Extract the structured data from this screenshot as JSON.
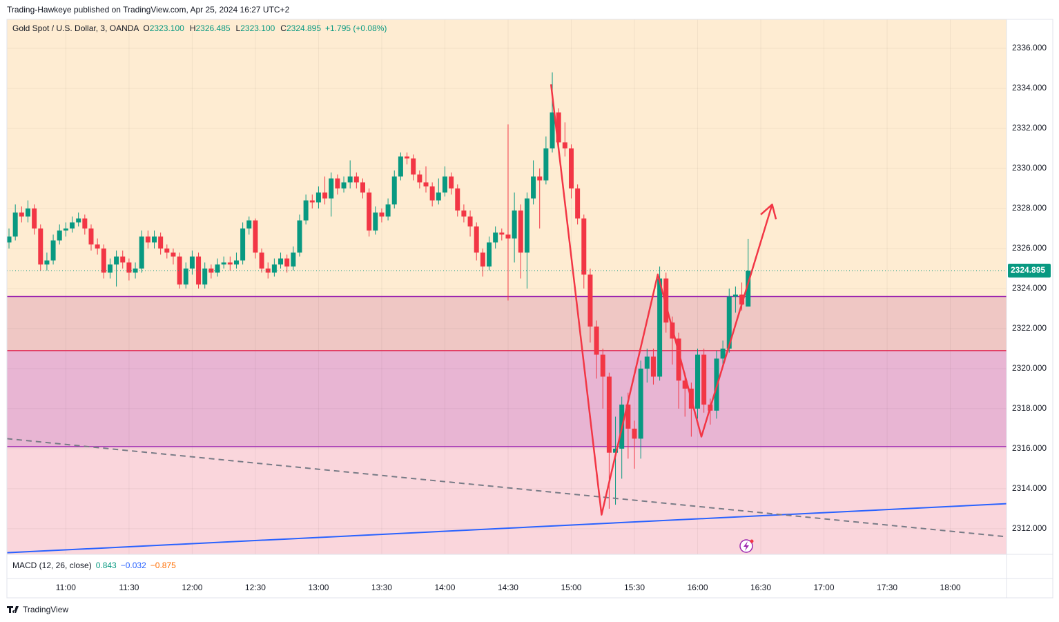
{
  "chart_data": {
    "type": "candlestick",
    "source": "Trading-Hawkeye published on TradingView.com, Apr 25, 2024 16:27 UTC+2",
    "title": "Gold Spot / U.S. Dollar, 3, OANDA",
    "legend": [
      {
        "label": "O",
        "value": "2323.100"
      },
      {
        "label": "H",
        "value": "2326.485"
      },
      {
        "label": "L",
        "value": "2323.100"
      },
      {
        "label": "C",
        "value": "2324.895"
      }
    ],
    "change": "+1.795 (+0.08%)",
    "open": [
      2326.3,
      2326.6,
      2327.8,
      2327.6,
      2328.0,
      2327.0,
      2325.2,
      2325.4,
      2326.4,
      2326.9,
      2327.0,
      2327.3,
      2327.5,
      2327.0,
      2326.2,
      2326.0,
      2324.8,
      2325.2,
      2325.6,
      2325.3,
      2324.8,
      2325.0,
      2326.6,
      2326.3,
      2326.6,
      2326.0,
      2325.8,
      2325.6,
      2324.2,
      2325.0,
      2325.6,
      2324.2,
      2325.0,
      2324.8,
      2325.2,
      2325.3,
      2325.2,
      2325.4,
      2327.0,
      2327.4,
      2325.8,
      2325.0,
      2324.8,
      2325.2,
      2325.5,
      2325.1,
      2325.8,
      2327.4,
      2328.4,
      2328.3,
      2328.8,
      2328.5,
      2329.5,
      2329.0,
      2329.3,
      2329.6,
      2329.3,
      2328.8,
      2326.9,
      2327.8,
      2327.6,
      2328.2,
      2329.6,
      2330.6,
      2330.5,
      2329.7,
      2329.3,
      2329.1,
      2328.4,
      2328.8,
      2329.6,
      2329.0,
      2327.9,
      2327.6,
      2327.1,
      2325.8,
      2325.1,
      2326.3,
      2326.8,
      2326.7,
      2326.5,
      2327.9,
      2325.8,
      2328.5,
      2329.6,
      2329.4,
      2331.0,
      2332.8,
      2331.3,
      2331.0,
      2329.0,
      2327.5,
      2324.7,
      2322.1,
      2320.7,
      2319.6,
      2315.8,
      2316.0,
      2318.2,
      2317.0,
      2316.5,
      2320.0,
      2320.6,
      2319.6,
      2324.5,
      2322.3,
      2321.5,
      2319.4,
      2319.0,
      2318.0,
      2320.7,
      2318.2,
      2317.9,
      2320.5,
      2321.0,
      2323.6,
      2323.7,
      2323.1
    ],
    "high": [
      2327.0,
      2328.2,
      2328.1,
      2328.4,
      2328.2,
      2327.2,
      2325.8,
      2326.7,
      2327.2,
      2327.3,
      2327.6,
      2327.8,
      2327.7,
      2327.2,
      2326.5,
      2326.2,
      2325.5,
      2325.9,
      2325.9,
      2325.5,
      2325.3,
      2326.9,
      2326.9,
      2326.9,
      2326.8,
      2326.2,
      2326.0,
      2325.8,
      2325.3,
      2325.9,
      2325.8,
      2325.3,
      2325.2,
      2325.5,
      2325.6,
      2325.6,
      2325.8,
      2327.3,
      2327.6,
      2327.5,
      2326.0,
      2325.3,
      2325.5,
      2325.8,
      2325.7,
      2326.1,
      2327.7,
      2328.7,
      2328.7,
      2329.1,
      2329.6,
      2329.8,
      2329.7,
      2329.6,
      2330.4,
      2329.8,
      2329.5,
      2329.0,
      2328.1,
      2328.0,
      2328.5,
      2329.9,
      2330.8,
      2330.8,
      2330.7,
      2329.9,
      2330.1,
      2329.3,
      2329.5,
      2330.1,
      2329.8,
      2329.2,
      2328.2,
      2327.9,
      2327.3,
      2326.0,
      2326.6,
      2327.1,
      2327.0,
      2332.2,
      2328.8,
      2328.2,
      2328.8,
      2330.4,
      2330.0,
      2331.6,
      2334.8,
      2333.0,
      2332.3,
      2331.2,
      2329.2,
      2327.7,
      2325.0,
      2322.4,
      2321.0,
      2319.8,
      2317.6,
      2318.6,
      2318.8,
      2317.4,
      2320.4,
      2321.0,
      2321.0,
      2325.1,
      2324.8,
      2322.6,
      2321.8,
      2319.8,
      2319.3,
      2321.0,
      2321.0,
      2318.5,
      2320.9,
      2321.4,
      2324.0,
      2324.1,
      2324.3,
      2326.485
    ],
    "low": [
      2326.0,
      2326.4,
      2327.3,
      2327.3,
      2326.7,
      2324.9,
      2324.9,
      2325.2,
      2326.2,
      2326.6,
      2326.8,
      2327.1,
      2326.7,
      2325.9,
      2325.7,
      2324.5,
      2324.5,
      2324.1,
      2325.0,
      2324.4,
      2324.5,
      2324.8,
      2326.0,
      2326.0,
      2325.7,
      2325.5,
      2325.2,
      2324.0,
      2324.0,
      2324.7,
      2324.0,
      2324.0,
      2324.5,
      2324.6,
      2325.0,
      2324.9,
      2325.0,
      2325.2,
      2326.7,
      2325.5,
      2324.8,
      2324.5,
      2324.6,
      2325.0,
      2324.8,
      2324.9,
      2325.6,
      2327.2,
      2328.0,
      2328.0,
      2328.2,
      2327.6,
      2328.7,
      2328.8,
      2329.0,
      2329.0,
      2328.5,
      2326.6,
      2326.7,
      2327.3,
      2327.4,
      2328.0,
      2329.4,
      2330.2,
      2329.4,
      2329.0,
      2328.8,
      2328.1,
      2328.2,
      2328.6,
      2328.7,
      2327.6,
      2327.3,
      2326.6,
      2325.4,
      2324.6,
      2324.9,
      2326.0,
      2326.4,
      2323.4,
      2325.3,
      2324.5,
      2324.0,
      2328.2,
      2327.0,
      2329.2,
      2330.8,
      2330.8,
      2330.6,
      2328.5,
      2327.2,
      2324.0,
      2321.3,
      2319.5,
      2318.0,
      2313.0,
      2313.2,
      2314.5,
      2315.5,
      2315.0,
      2315.5,
      2319.3,
      2319.2,
      2319.4,
      2321.8,
      2320.2,
      2318.0,
      2317.6,
      2316.6,
      2317.5,
      2317.8,
      2317.2,
      2317.5,
      2320.2,
      2320.8,
      2322.8,
      2322.9,
      2323.1
    ],
    "close": [
      2326.6,
      2327.8,
      2327.6,
      2328.0,
      2327.0,
      2325.2,
      2325.4,
      2326.4,
      2326.9,
      2327.0,
      2327.3,
      2327.5,
      2327.0,
      2326.2,
      2326.0,
      2324.8,
      2325.2,
      2325.6,
      2325.3,
      2324.8,
      2325.0,
      2326.6,
      2326.3,
      2326.6,
      2326.0,
      2325.8,
      2325.6,
      2324.2,
      2325.0,
      2325.6,
      2324.2,
      2325.0,
      2324.8,
      2325.2,
      2325.3,
      2325.2,
      2325.4,
      2327.0,
      2327.4,
      2325.8,
      2325.0,
      2324.8,
      2325.2,
      2325.5,
      2325.1,
      2325.8,
      2327.4,
      2328.4,
      2328.3,
      2328.8,
      2328.5,
      2329.5,
      2329.0,
      2329.3,
      2329.6,
      2329.3,
      2328.8,
      2326.9,
      2327.8,
      2327.6,
      2328.2,
      2329.6,
      2330.6,
      2330.5,
      2329.7,
      2329.3,
      2329.1,
      2328.4,
      2328.8,
      2329.6,
      2329.0,
      2327.9,
      2327.6,
      2327.1,
      2325.8,
      2325.1,
      2326.3,
      2326.8,
      2326.7,
      2326.5,
      2327.9,
      2325.8,
      2328.5,
      2329.6,
      2329.4,
      2331.0,
      2332.8,
      2331.3,
      2331.0,
      2329.0,
      2327.5,
      2324.7,
      2322.1,
      2320.7,
      2319.6,
      2315.8,
      2316.0,
      2318.2,
      2317.0,
      2316.5,
      2320.0,
      2320.6,
      2319.6,
      2324.5,
      2322.3,
      2321.5,
      2319.4,
      2319.0,
      2318.0,
      2320.7,
      2318.2,
      2317.9,
      2320.5,
      2321.0,
      2323.6,
      2323.7,
      2323.2,
      2324.895
    ],
    "up_color": "#089981",
    "down_color": "#f23645",
    "ylim": [
      2310.72,
      2337.45
    ],
    "yticks": [
      {
        "value": 2312,
        "label": "2312.000"
      },
      {
        "value": 2314,
        "label": "2314.000"
      },
      {
        "value": 2316,
        "label": "2316.000"
      },
      {
        "value": 2318,
        "label": "2318.000"
      },
      {
        "value": 2320,
        "label": "2320.000"
      },
      {
        "value": 2322,
        "label": "2322.000"
      },
      {
        "value": 2324,
        "label": "2324.000"
      },
      {
        "value": 2326,
        "label": "2326.000"
      },
      {
        "value": 2328,
        "label": "2328.000"
      },
      {
        "value": 2330,
        "label": "2330.000"
      },
      {
        "value": 2332,
        "label": "2332.000"
      },
      {
        "value": 2334,
        "label": "2334.000"
      },
      {
        "value": 2336,
        "label": "2336.000"
      }
    ],
    "xlim": [
      -0.33,
      157.9
    ],
    "xticks": [
      {
        "value": 9,
        "label": "11:00"
      },
      {
        "value": 19,
        "label": "11:30"
      },
      {
        "value": 29,
        "label": "12:00"
      },
      {
        "value": 39,
        "label": "12:30"
      },
      {
        "value": 49,
        "label": "13:00"
      },
      {
        "value": 59,
        "label": "13:30"
      },
      {
        "value": 69,
        "label": "14:00"
      },
      {
        "value": 79,
        "label": "14:30"
      },
      {
        "value": 89,
        "label": "15:00"
      },
      {
        "value": 99,
        "label": "15:30"
      },
      {
        "value": 109,
        "label": "16:00"
      },
      {
        "value": 119,
        "label": "16:30"
      },
      {
        "value": 129,
        "label": "17:00"
      },
      {
        "value": 139,
        "label": "17:30"
      },
      {
        "value": 149,
        "label": "18:00"
      }
    ],
    "grid": true,
    "background": "#feecd2",
    "zones": [
      {
        "top": 2323.6,
        "color": "#efc7c4"
      },
      {
        "top": 2320.9,
        "color": "#e8b5d3"
      },
      {
        "top": 2316.1,
        "color": "#fad6dc"
      }
    ],
    "levels": [
      {
        "value": 2323.6,
        "color": "#9c27b0"
      },
      {
        "value": 2320.9,
        "color": "#e0264f"
      },
      {
        "value": 2316.1,
        "color": "#9c27b0"
      }
    ],
    "trendlines": [
      {
        "x": [
          -0.33,
          157.9
        ],
        "y": [
          2310.8,
          2313.25
        ],
        "color": "#2962ff",
        "dashed": false
      },
      {
        "x": [
          -0.33,
          157.9
        ],
        "y": [
          2316.5,
          2311.6
        ],
        "color": "#787b86",
        "dashed": true
      }
    ],
    "zigzag": {
      "x": [
        85.8,
        93.8,
        102.7,
        109.6,
        120.8
      ],
      "y": [
        2334.2,
        2312.7,
        2324.7,
        2316.6,
        2328.2
      ],
      "color": "#f23645"
    },
    "indicator": {
      "name": "MACD (12, 26, close)",
      "values": [
        "0.843",
        "−0.032",
        "−0.875"
      ],
      "colors": [
        "#089981",
        "#2962ff",
        "#ff6d00"
      ]
    },
    "brand": "TradingView"
  }
}
